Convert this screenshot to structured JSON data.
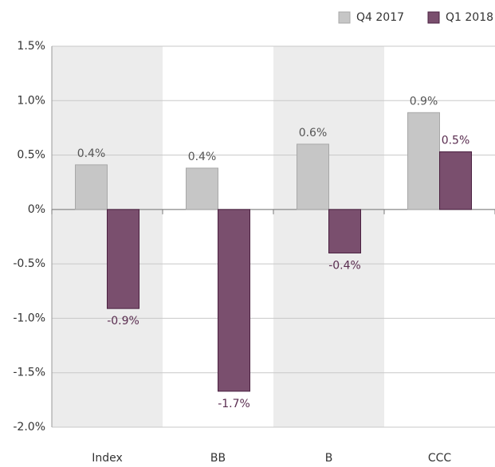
{
  "chart_data": {
    "type": "bar",
    "categories": [
      "Index",
      "BB",
      "B",
      "CCC"
    ],
    "series": [
      {
        "name": "Q4 2017",
        "color": "#c6c6c6",
        "values": [
          0.41,
          0.38,
          0.6,
          0.89
        ],
        "value_labels": [
          "0.4%",
          "0.4%",
          "0.6%",
          "0.9%"
        ]
      },
      {
        "name": "Q1 2018",
        "color": "#7a4f6e",
        "values": [
          -0.91,
          -1.67,
          -0.4,
          0.53
        ],
        "value_labels": [
          "-0.9%",
          "-1.7%",
          "-0.4%",
          "0.5%"
        ]
      }
    ],
    "ylim": [
      -2.0,
      1.5
    ],
    "yticks": [
      {
        "value": 1.5,
        "label": "1.5%"
      },
      {
        "value": 1.0,
        "label": "1.0%"
      },
      {
        "value": 0.5,
        "label": "0.5%"
      },
      {
        "value": 0,
        "label": "0%"
      },
      {
        "value": -0.5,
        "label": "-0.5%"
      },
      {
        "value": -1.0,
        "label": "-1.0%"
      },
      {
        "value": -1.5,
        "label": "-1.5%"
      },
      {
        "value": -2.0,
        "label": "-2.0%"
      }
    ],
    "grid": true,
    "legend": "top-right"
  }
}
